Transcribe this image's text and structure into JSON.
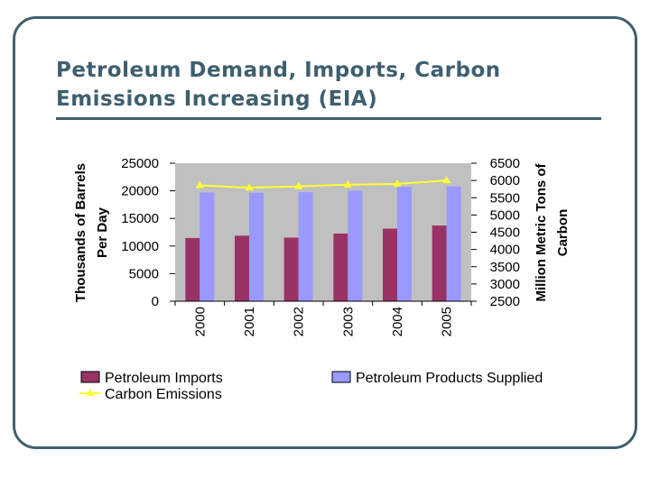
{
  "slide": {
    "title_line1": "Petroleum Demand, Imports, Carbon",
    "title_line2": "Emissions Increasing (EIA)"
  },
  "chart_data": {
    "type": "bar",
    "categories": [
      "2000",
      "2001",
      "2002",
      "2003",
      "2004",
      "2005"
    ],
    "series": [
      {
        "name": "Petroleum Imports",
        "kind": "bar",
        "axis": "left",
        "color": "#993366",
        "values": [
          11460,
          11870,
          11530,
          12260,
          13150,
          13710
        ]
      },
      {
        "name": "Petroleum Products Supplied",
        "kind": "bar",
        "axis": "left",
        "color": "#9999ff",
        "values": [
          19700,
          19650,
          19760,
          20030,
          20730,
          20800
        ]
      },
      {
        "name": "Carbon Emissions",
        "kind": "line",
        "axis": "right",
        "color": "#ffff33",
        "values": [
          5860,
          5790,
          5830,
          5880,
          5900,
          6000
        ]
      }
    ],
    "ylabel": "Thousands of Barrels Per Day",
    "ylabel_lines": [
      "Thousands of Barrels",
      "Per Day"
    ],
    "ylim": [
      0,
      25000
    ],
    "yticks": [
      "0",
      "5000",
      "10000",
      "15000",
      "20000",
      "25000"
    ],
    "y2label": "Million Metric Tons of Carbon",
    "y2label_lines": [
      "Million Metric Tons of",
      "Carbon"
    ],
    "y2lim": [
      2500,
      6500
    ],
    "y2ticks": [
      "2500",
      "3000",
      "3500",
      "4000",
      "4500",
      "5000",
      "5500",
      "6000",
      "6500"
    ],
    "grid": false,
    "legend_position": "bottom",
    "plot_background": "#c0c0c0"
  }
}
